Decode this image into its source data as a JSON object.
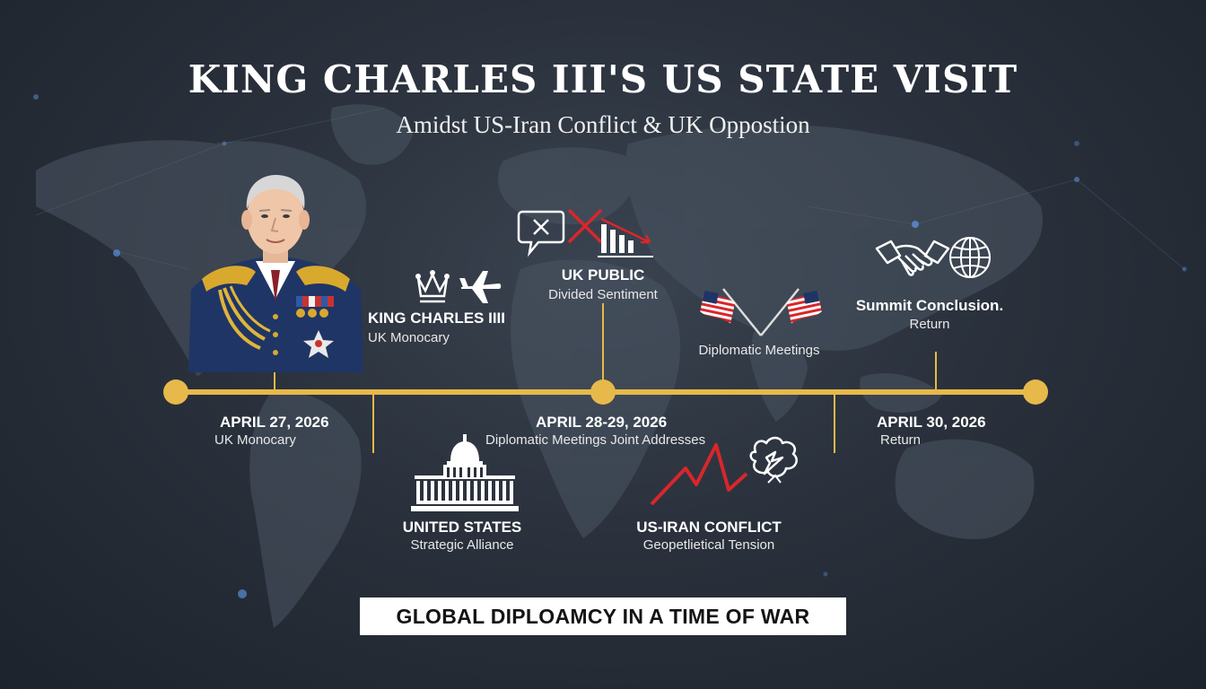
{
  "header": {
    "title": "KING CHARLES III'S US STATE VISIT",
    "subtitle": "Amidst US-Iran Conflict & UK Oppostion"
  },
  "nodes": {
    "king": {
      "title": "KING CHARLES IIII",
      "subtitle": "UK Monocary"
    },
    "uk_public": {
      "title": "UK PUBLIC",
      "subtitle": "Divided Sentiment"
    },
    "diplomatic": {
      "subtitle": "Diplomatic Meetings"
    },
    "summit": {
      "title": "Summit Conclusion.",
      "subtitle": "Return"
    },
    "united_states": {
      "title": "UNITED STATES",
      "subtitle": "Strategic Alliance"
    },
    "conflict": {
      "title": "US-IRAN CONFLICT",
      "subtitle": "Geopetlietical Tension"
    }
  },
  "timeline": {
    "dates": [
      {
        "date": "APRIL 27, 2026",
        "note": "UK Monocary"
      },
      {
        "date": "APRIL 28-29, 2026",
        "note": "Diplomatic Meetings Joint Addresses"
      },
      {
        "date": "APRIL 30, 2026",
        "note": "Return"
      }
    ]
  },
  "banner": {
    "text": "GLOBAL DIPLOAMCY IN A TIME OF WAR"
  },
  "colors": {
    "timeline": "#e6b94a",
    "background": "#2a313c",
    "red": "#d9262b",
    "navy": "#1f3566"
  }
}
